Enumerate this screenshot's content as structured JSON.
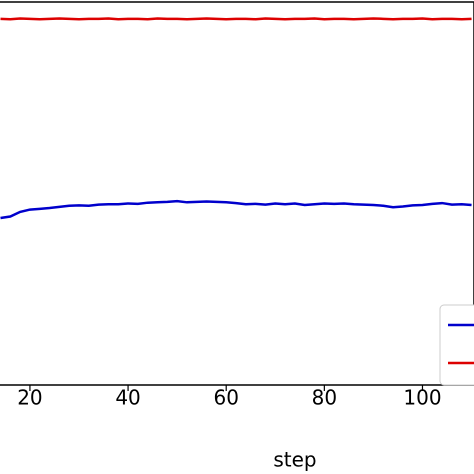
{
  "chart_data": {
    "type": "line",
    "xlabel": "step",
    "x": [
      14,
      16,
      18,
      20,
      22,
      24,
      26,
      28,
      30,
      32,
      34,
      36,
      38,
      40,
      42,
      44,
      46,
      48,
      50,
      52,
      54,
      56,
      58,
      60,
      62,
      64,
      66,
      68,
      70,
      72,
      74,
      76,
      78,
      80,
      82,
      84,
      86,
      88,
      90,
      92,
      94,
      96,
      98,
      100,
      102,
      104,
      106,
      108,
      110
    ],
    "series": [
      {
        "color": "#0000cc",
        "values": [
          0.436,
          0.44,
          0.452,
          0.458,
          0.46,
          0.462,
          0.465,
          0.468,
          0.469,
          0.468,
          0.471,
          0.472,
          0.472,
          0.474,
          0.473,
          0.476,
          0.477,
          0.478,
          0.48,
          0.477,
          0.478,
          0.479,
          0.478,
          0.477,
          0.475,
          0.472,
          0.473,
          0.471,
          0.474,
          0.472,
          0.474,
          0.47,
          0.472,
          0.474,
          0.473,
          0.474,
          0.472,
          0.471,
          0.47,
          0.468,
          0.464,
          0.466,
          0.469,
          0.47,
          0.473,
          0.475,
          0.471,
          0.472,
          0.47
        ]
      },
      {
        "color": "#dd0000",
        "values": [
          0.956,
          0.955,
          0.957,
          0.956,
          0.955,
          0.956,
          0.957,
          0.956,
          0.955,
          0.956,
          0.956,
          0.957,
          0.955,
          0.956,
          0.956,
          0.955,
          0.957,
          0.956,
          0.956,
          0.955,
          0.956,
          0.957,
          0.956,
          0.955,
          0.956,
          0.956,
          0.955,
          0.957,
          0.956,
          0.955,
          0.956,
          0.956,
          0.957,
          0.955,
          0.956,
          0.956,
          0.955,
          0.956,
          0.957,
          0.956,
          0.955,
          0.956,
          0.956,
          0.957,
          0.955,
          0.956,
          0.956,
          0.955,
          0.956
        ]
      }
    ],
    "xlim": [
      13.9,
      110.5
    ],
    "xticks": [
      20,
      40,
      60,
      80,
      100
    ],
    "ylim": [
      0,
      1
    ]
  }
}
